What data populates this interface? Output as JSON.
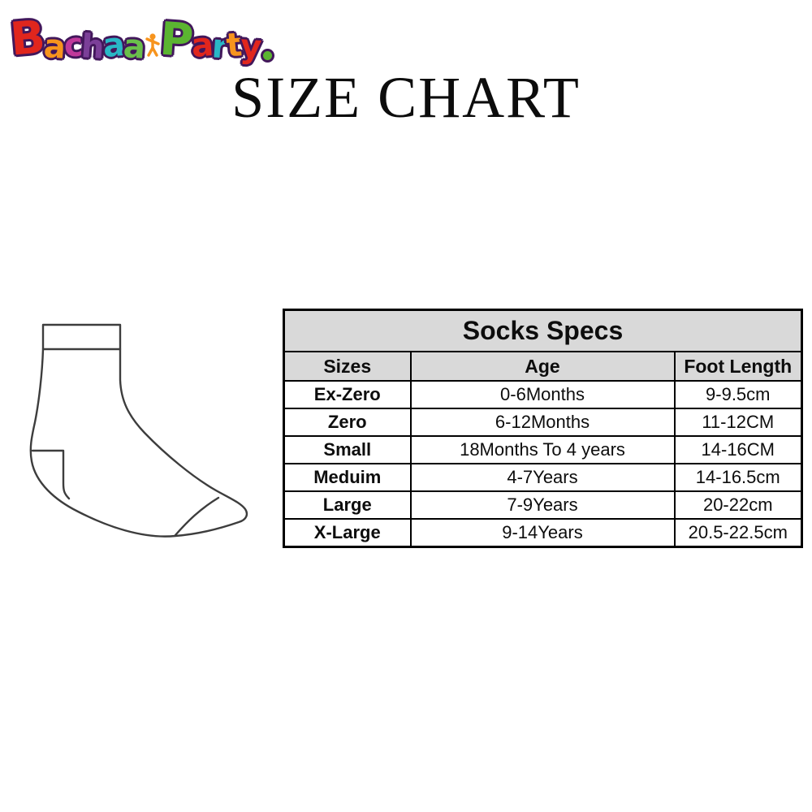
{
  "logo": {
    "name": "Bachaa Party",
    "outline_color": "#42175b",
    "letters": [
      {
        "ch": "B",
        "color": "#e0261d",
        "big": true
      },
      {
        "ch": "a",
        "color": "#f7941d"
      },
      {
        "ch": "c",
        "color": "#c0399b"
      },
      {
        "ch": "h",
        "color": "#7b3f98"
      },
      {
        "ch": "a",
        "color": "#29b7c6"
      },
      {
        "ch": "a",
        "color": "#6abf4b"
      },
      {
        "ch": "kid",
        "color": "#f7941d"
      },
      {
        "ch": "P",
        "color": "#5bb431",
        "big": true
      },
      {
        "ch": "a",
        "color": "#e0261d"
      },
      {
        "ch": "r",
        "color": "#29b7c6"
      },
      {
        "ch": "t",
        "color": "#f7941d"
      },
      {
        "ch": "y",
        "color": "#e0261d"
      },
      {
        "ch": ".",
        "color": "#5bb431"
      }
    ]
  },
  "page_title": "SIZE CHART",
  "sock_image": {
    "description": "sock outline line drawing",
    "stroke_color": "#3d3d3d"
  },
  "table": {
    "title": "Socks Specs",
    "header_bg": "#d9d9d9",
    "border_color": "#000000",
    "columns": [
      "Sizes",
      "Age",
      "Foot Length"
    ],
    "rows": [
      {
        "size": "Ex-Zero",
        "age": "0-6Months",
        "foot_length": "9-9.5cm"
      },
      {
        "size": "Zero",
        "age": "6-12Months",
        "foot_length": "11-12CM"
      },
      {
        "size": "Small",
        "age": "18Months To 4 years",
        "foot_length": "14-16CM"
      },
      {
        "size": "Meduim",
        "age": "4-7Years",
        "foot_length": "14-16.5cm"
      },
      {
        "size": "Large",
        "age": "7-9Years",
        "foot_length": "20-22cm"
      },
      {
        "size": "X-Large",
        "age": "9-14Years",
        "foot_length": "20.5-22.5cm"
      }
    ]
  }
}
